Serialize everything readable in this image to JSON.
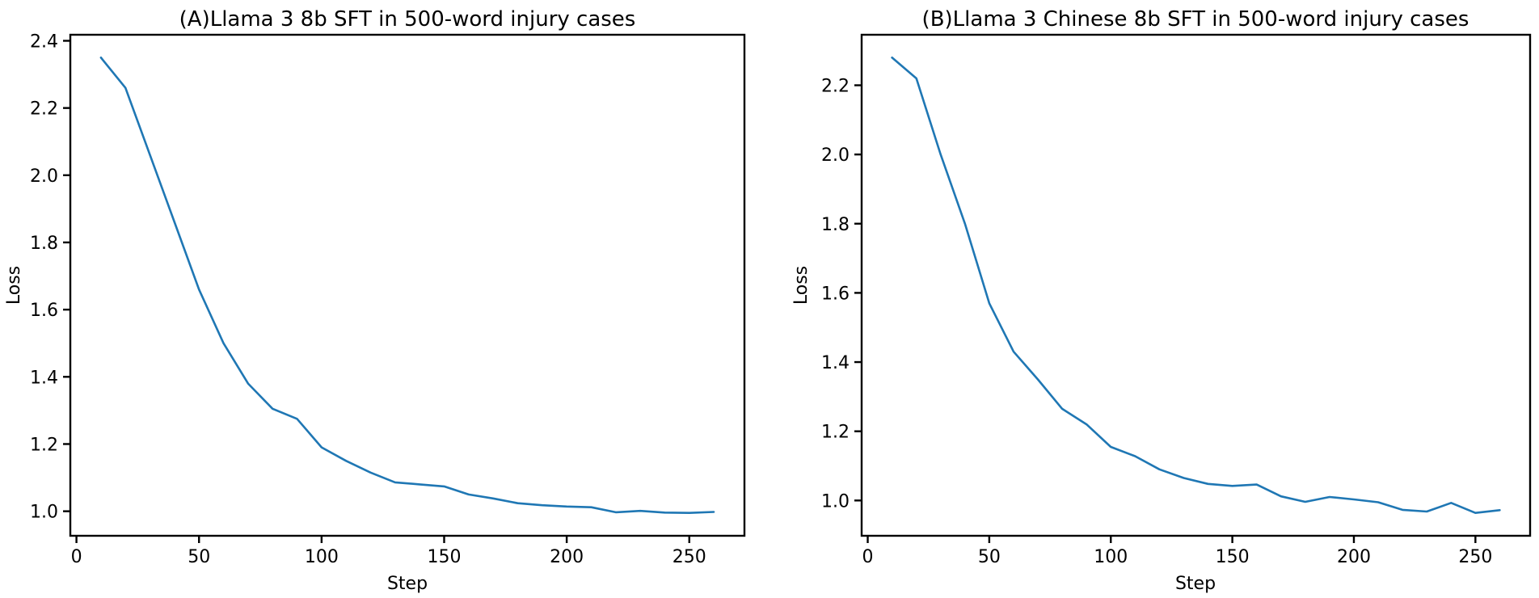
{
  "page": {
    "background": "#ffffff"
  },
  "chart_data": [
    {
      "type": "line",
      "panel": "A",
      "title": "(A)Llama 3 8b SFT in 500-word injury cases",
      "xlabel": "Step",
      "ylabel": "Loss",
      "line_color": "#1f77b4",
      "axis_color": "#000000",
      "grid": false,
      "legend_position": "none",
      "x": [
        10,
        20,
        30,
        40,
        50,
        60,
        70,
        80,
        90,
        100,
        110,
        120,
        130,
        140,
        150,
        160,
        170,
        180,
        190,
        200,
        210,
        220,
        230,
        240,
        250,
        260
      ],
      "y": [
        2.35,
        2.26,
        2.06,
        1.86,
        1.66,
        1.5,
        1.38,
        1.305,
        1.275,
        1.19,
        1.15,
        1.115,
        1.086,
        1.08,
        1.074,
        1.05,
        1.038,
        1.024,
        1.018,
        1.014,
        1.012,
        0.997,
        1.001,
        0.996,
        0.995,
        0.998
      ],
      "xlim": [
        -2.5,
        272.5
      ],
      "ylim": [
        0.927,
        2.418
      ],
      "xticks": [
        0,
        50,
        100,
        150,
        200,
        250
      ],
      "xtick_labels": [
        "0",
        "50",
        "100",
        "150",
        "200",
        "250"
      ],
      "yticks": [
        1.0,
        1.2,
        1.4,
        1.6,
        1.8,
        2.0,
        2.2,
        2.4
      ],
      "ytick_labels": [
        "1.0",
        "1.2",
        "1.4",
        "1.6",
        "1.8",
        "2.0",
        "2.2",
        "2.4"
      ]
    },
    {
      "type": "line",
      "panel": "B",
      "title": "(B)Llama 3 Chinese 8b SFT in 500-word injury cases",
      "xlabel": "Step",
      "ylabel": "Loss",
      "line_color": "#1f77b4",
      "axis_color": "#000000",
      "grid": false,
      "legend_position": "none",
      "x": [
        10,
        20,
        30,
        40,
        50,
        60,
        70,
        80,
        90,
        100,
        110,
        120,
        130,
        140,
        150,
        160,
        170,
        180,
        190,
        200,
        210,
        220,
        230,
        240,
        250,
        260
      ],
      "y": [
        2.28,
        2.22,
        2.0,
        1.8,
        1.57,
        1.43,
        1.35,
        1.265,
        1.22,
        1.155,
        1.128,
        1.09,
        1.065,
        1.048,
        1.042,
        1.046,
        1.012,
        0.996,
        1.01,
        1.003,
        0.995,
        0.973,
        0.968,
        0.993,
        0.964,
        0.972
      ],
      "xlim": [
        -2.5,
        272.5
      ],
      "ylim": [
        0.898,
        2.346
      ],
      "xticks": [
        0,
        50,
        100,
        150,
        200,
        250
      ],
      "xtick_labels": [
        "0",
        "50",
        "100",
        "150",
        "200",
        "250"
      ],
      "yticks": [
        1.0,
        1.2,
        1.4,
        1.6,
        1.8,
        2.0,
        2.2
      ],
      "ytick_labels": [
        "1.0",
        "1.2",
        "1.4",
        "1.6",
        "1.8",
        "2.0",
        "2.2"
      ]
    }
  ]
}
